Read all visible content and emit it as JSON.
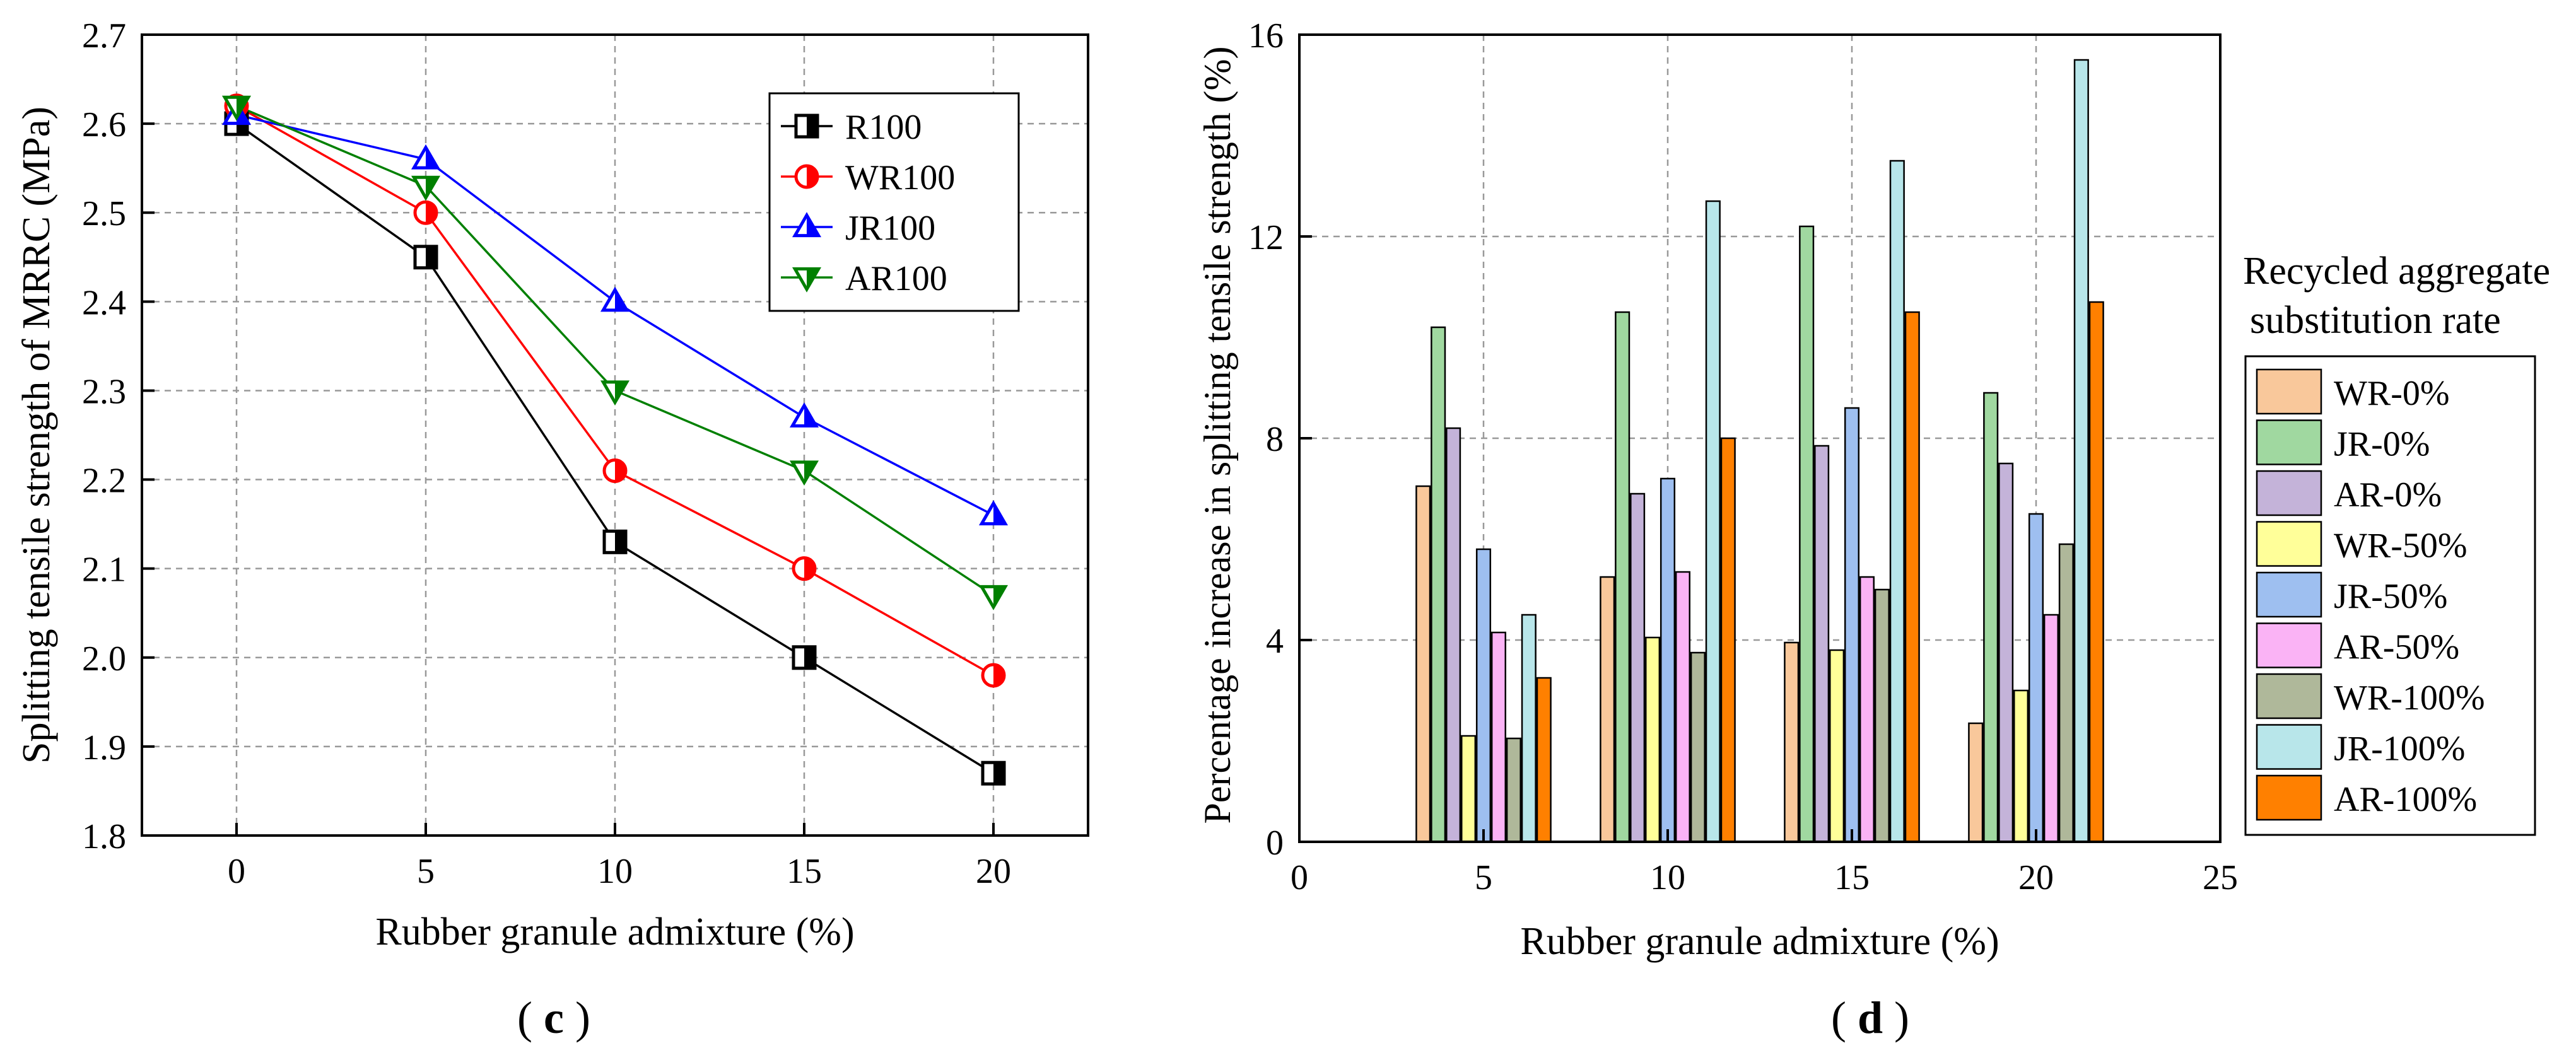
{
  "chart_data": [
    {
      "panel_label": "c",
      "type": "line",
      "xlabel": "Rubber granule admixture (%)",
      "ylabel": "Splitting tensile strength of MRRC (MPa)",
      "x": [
        0,
        5,
        10,
        15,
        20
      ],
      "xlim": [
        -2.5,
        22.5
      ],
      "xticks": [
        0,
        5,
        10,
        15,
        20
      ],
      "ylim": [
        1.8,
        2.7
      ],
      "yticks": [
        "1.8",
        "1.9",
        "2.0",
        "2.1",
        "2.2",
        "2.3",
        "2.4",
        "2.5",
        "2.6",
        "2.7"
      ],
      "grid": true,
      "legend_position": "top-right",
      "series": [
        {
          "name": "R100",
          "color": "#000000",
          "marker": "half-square",
          "values": [
            2.6,
            2.45,
            2.13,
            2.0,
            1.87
          ]
        },
        {
          "name": "WR100",
          "color": "#ff0000",
          "marker": "half-circle",
          "values": [
            2.62,
            2.5,
            2.21,
            2.1,
            1.98
          ]
        },
        {
          "name": "JR100",
          "color": "#0000ff",
          "marker": "triangle-up",
          "values": [
            2.61,
            2.56,
            2.4,
            2.27,
            2.16
          ]
        },
        {
          "name": "AR100",
          "color": "#008000",
          "marker": "triangle-down",
          "values": [
            2.62,
            2.53,
            2.3,
            2.21,
            2.07
          ]
        }
      ]
    },
    {
      "panel_label": "d",
      "type": "bar",
      "xlabel": "Rubber granule admixture (%)",
      "ylabel": "Percentage increase in splitting tensile strength (%)",
      "categories": [
        5,
        10,
        15,
        20
      ],
      "xlim": [
        0,
        25
      ],
      "xticks": [
        0,
        5,
        10,
        15,
        20,
        25
      ],
      "ylim": [
        0,
        16
      ],
      "yticks": [
        0,
        4,
        8,
        12,
        16
      ],
      "grid": true,
      "legend_title": "Recycled aggregate substitution rate",
      "legend_position": "right",
      "series": [
        {
          "name": "WR-0%",
          "color": "#f9c89b",
          "values": [
            7.05,
            5.25,
            3.95,
            2.35
          ]
        },
        {
          "name": "JR-0%",
          "color": "#a0d8a0",
          "values": [
            10.2,
            10.5,
            12.2,
            8.9
          ]
        },
        {
          "name": "AR-0%",
          "color": "#c4b3d9",
          "values": [
            8.2,
            6.9,
            7.85,
            7.5
          ]
        },
        {
          "name": "WR-50%",
          "color": "#ffff99",
          "values": [
            2.1,
            4.05,
            3.8,
            3.0
          ]
        },
        {
          "name": "JR-50%",
          "color": "#9ebff0",
          "values": [
            5.8,
            7.2,
            8.6,
            6.5
          ]
        },
        {
          "name": "AR-50%",
          "color": "#fab3f5",
          "values": [
            4.15,
            5.35,
            5.25,
            4.5
          ]
        },
        {
          "name": "WR-100%",
          "color": "#afb89a",
          "values": [
            2.05,
            3.75,
            5.0,
            5.9
          ]
        },
        {
          "name": "JR-100%",
          "color": "#b8e6ea",
          "values": [
            4.5,
            12.7,
            13.5,
            15.5
          ]
        },
        {
          "name": "AR-100%",
          "color": "#ff8000",
          "values": [
            3.25,
            8.0,
            10.5,
            10.7
          ]
        }
      ]
    }
  ]
}
